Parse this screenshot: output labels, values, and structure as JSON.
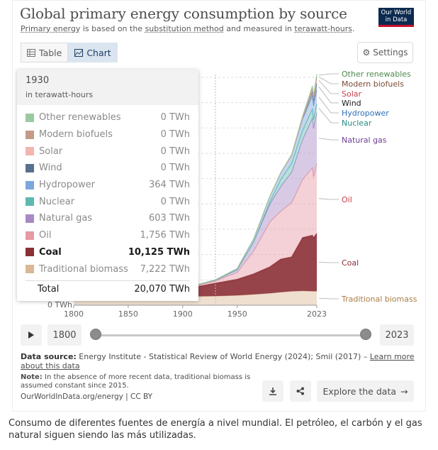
{
  "header": {
    "title": "Global primary energy consumption by source",
    "subtitle_parts": [
      "Primary energy",
      " is based on the ",
      "substitution method",
      " and measured in ",
      "terawatt-hours",
      "."
    ],
    "logo_line1": "Our World",
    "logo_line2": "in Data"
  },
  "tabs": [
    {
      "label": "Table",
      "icon": "table-icon",
      "active": false
    },
    {
      "label": "Chart",
      "icon": "chart-icon",
      "active": true
    }
  ],
  "settings_label": "Settings",
  "tooltip": {
    "time": "1930",
    "unit": "in terawatt-hours",
    "rows": [
      {
        "name": "Other renewables",
        "value": "0 TWh",
        "color": "#9cc9a0",
        "highlight": false
      },
      {
        "name": "Modern biofuels",
        "value": "0 TWh",
        "color": "#c49a86",
        "highlight": false
      },
      {
        "name": "Solar",
        "value": "0 TWh",
        "color": "#f3b6ae",
        "highlight": false
      },
      {
        "name": "Wind",
        "value": "0 TWh",
        "color": "#59708f",
        "highlight": false
      },
      {
        "name": "Hydropower",
        "value": "364 TWh",
        "color": "#7ca6dc",
        "highlight": false
      },
      {
        "name": "Nuclear",
        "value": "0 TWh",
        "color": "#5fb8b0",
        "highlight": false
      },
      {
        "name": "Natural gas",
        "value": "603 TWh",
        "color": "#a889c6",
        "highlight": false
      },
      {
        "name": "Oil",
        "value": "1,756 TWh",
        "color": "#e59aa4",
        "highlight": false
      },
      {
        "name": "Coal",
        "value": "10,125 TWh",
        "color": "#8b2f36",
        "highlight": true
      },
      {
        "name": "Traditional biomass",
        "value": "7,222 TWh",
        "color": "#d9b894",
        "highlight": false
      }
    ],
    "total_label": "Total",
    "total_value": "20,070 TWh"
  },
  "timeline": {
    "start_year": "1800",
    "end_year": "2023"
  },
  "footer": {
    "source_label": "Data source:",
    "source_text": " Energy Institute - Statistical Review of World Energy (2024); Smil (2017) – ",
    "source_link": "Learn more about this data",
    "note_label": "Note:",
    "note_text": " In the absence of more recent data, traditional biomass is assumed constant since 2015.",
    "url": "OurWorldInData.org/energy | CC BY",
    "explore_label": "Explore the data"
  },
  "caption": "Consumo de diferentes fuentes de energía a nivel mundial. El petróleo, el carbón y el gas natural siguen siendo las más utilizadas.",
  "chart_data": {
    "type": "area",
    "stacked": true,
    "title": "Global primary energy consumption by source",
    "x": [
      1800,
      1850,
      1900,
      1930,
      1950,
      1965,
      1980,
      1990,
      2000,
      2010,
      2019,
      2020,
      2023
    ],
    "xticks": [
      "1800",
      "1850",
      "1900",
      "1950",
      "2023"
    ],
    "ylabel_visible": "0 TWh",
    "ylim": [
      0,
      185000
    ],
    "series": [
      {
        "name": "Traditional biomass",
        "color": "#d9b894",
        "label_color": "#a97d46",
        "values": [
          5600,
          6100,
          6800,
          7222,
          7800,
          8500,
          9500,
          10300,
          11000,
          11300,
          11111,
          11111,
          11111
        ]
      },
      {
        "name": "Coal",
        "color": "#8b2f36",
        "label_color": "#8b2f36",
        "values": [
          100,
          550,
          5700,
          10125,
          12600,
          16100,
          20700,
          26000,
          27000,
          42000,
          44000,
          42000,
          45500
        ]
      },
      {
        "name": "Oil",
        "color": "#e59aa4",
        "label_color": "#c7404c",
        "values": [
          0,
          0,
          500,
          1756,
          5500,
          18000,
          35600,
          38000,
          43000,
          46000,
          53500,
          48000,
          55300
        ]
      },
      {
        "name": "Natural gas",
        "color": "#a889c6",
        "label_color": "#6d3e91",
        "values": [
          0,
          0,
          70,
          603,
          2100,
          7200,
          14100,
          19500,
          24100,
          31500,
          39000,
          38500,
          40100
        ]
      },
      {
        "name": "Nuclear",
        "color": "#5fb8b0",
        "label_color": "#2a8c82",
        "values": [
          0,
          0,
          0,
          0,
          0,
          60,
          1800,
          5500,
          7000,
          7500,
          7300,
          7000,
          7100
        ]
      },
      {
        "name": "Hydropower",
        "color": "#7ca6dc",
        "label_color": "#2f6db5",
        "values": [
          0,
          0,
          20,
          364,
          900,
          2400,
          4400,
          5200,
          6400,
          8600,
          10400,
          10700,
          10600
        ]
      },
      {
        "name": "Wind",
        "color": "#59708f",
        "label_color": "#1a1a1a",
        "values": [
          0,
          0,
          0,
          0,
          0,
          0,
          0,
          10,
          80,
          900,
          3500,
          4000,
          5500
        ]
      },
      {
        "name": "Solar",
        "color": "#f3b6ae",
        "label_color": "#c7404c",
        "values": [
          0,
          0,
          0,
          0,
          0,
          0,
          0,
          0,
          5,
          80,
          1800,
          2200,
          4500
        ]
      },
      {
        "name": "Modern biofuels",
        "color": "#c49a86",
        "label_color": "#7a4b36",
        "values": [
          0,
          0,
          0,
          0,
          0,
          0,
          50,
          100,
          150,
          800,
          1100,
          1000,
          1200
        ]
      },
      {
        "name": "Other renewables",
        "color": "#9cc9a0",
        "label_color": "#4c8a4e",
        "values": [
          0,
          0,
          0,
          0,
          0,
          0,
          200,
          300,
          500,
          900,
          1400,
          1500,
          1600
        ]
      }
    ]
  }
}
